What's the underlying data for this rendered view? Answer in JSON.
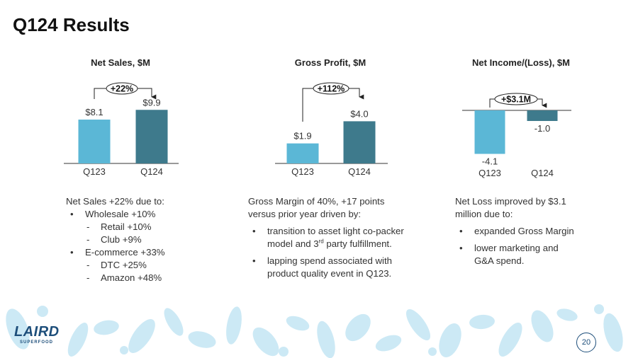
{
  "title": "Q124 Results",
  "colors": {
    "prior": "#5bb7d6",
    "current": "#3e7a8c",
    "leaf": "#cce9f5",
    "brand": "#1d4e7a"
  },
  "chart_data": [
    {
      "type": "bar",
      "title": "Net Sales, $M",
      "categories": [
        "Q123",
        "Q124"
      ],
      "values": [
        8.1,
        9.9
      ],
      "value_labels": [
        "$8.1",
        "$9.9"
      ],
      "change_label": "+22%",
      "ylim": [
        0,
        12
      ]
    },
    {
      "type": "bar",
      "title": "Gross Profit, $M",
      "categories": [
        "Q123",
        "Q124"
      ],
      "values": [
        1.9,
        4.0
      ],
      "value_labels": [
        "$1.9",
        "$4.0"
      ],
      "change_label": "+112%",
      "ylim": [
        0,
        5.1
      ]
    },
    {
      "type": "bar",
      "title": "Net Income/(Loss), $M",
      "categories": [
        "Q123",
        "Q124"
      ],
      "values": [
        -4.1,
        -1.0
      ],
      "value_labels": [
        "-4.1",
        "-1.0"
      ],
      "change_label": "+$3.1M",
      "ylim": [
        -4.5,
        0
      ]
    }
  ],
  "notes": {
    "sales": {
      "intro": "Net Sales +22% due to:",
      "wholesale": "Wholesale +10%",
      "retail": "Retail +10%",
      "club": "Club +9%",
      "ecommerce": "E-commerce +33%",
      "dtc": "DTC +25%",
      "amazon": "Amazon +48%"
    },
    "profit": {
      "intro_1": "Gross Margin of 40%, +17 points",
      "intro_2": "versus prior year driven by:",
      "b1_1": "transition to asset light co-packer",
      "b1_2a": "model and 3",
      "b1_sup": "rd",
      "b1_2b": " party fulfillment.",
      "b2_1": "lapping spend associated with",
      "b2_2": "product quality event in Q123."
    },
    "income": {
      "intro_1": "Net Loss improved by $3.1",
      "intro_2": "million  due to:",
      "b1": "expanded Gross Margin",
      "b2_1": "lower marketing and",
      "b2_2": "G&A spend."
    }
  },
  "footer": {
    "logo_text": "LAIRD",
    "logo_sub": "SUPERFOOD",
    "page_number": "20"
  }
}
